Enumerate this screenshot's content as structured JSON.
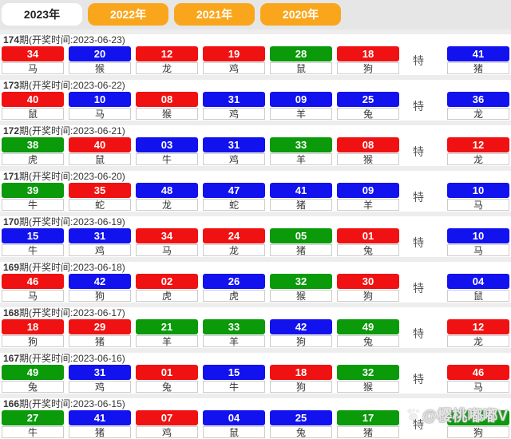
{
  "tabs": {
    "items": [
      {
        "label": "2023年",
        "active": true
      },
      {
        "label": "2022年",
        "active": false
      },
      {
        "label": "2021年",
        "active": false
      },
      {
        "label": "2020年",
        "active": false
      }
    ]
  },
  "labels": {
    "special": "特",
    "period_suffix": "期",
    "time_open": "(开奖时间:",
    "time_close": ")"
  },
  "colors": {
    "red": "#f01212",
    "blue": "#1212ee",
    "green": "#0a9a0a",
    "tab_orange": "#faa61c"
  },
  "watermark": {
    "text": "@樱桃嘟嘟V"
  },
  "rows": [
    {
      "period": "174",
      "date": "2023-06-23",
      "balls": [
        {
          "n": "34",
          "c": "red",
          "z": "马"
        },
        {
          "n": "20",
          "c": "blue",
          "z": "猴"
        },
        {
          "n": "12",
          "c": "red",
          "z": "龙"
        },
        {
          "n": "19",
          "c": "red",
          "z": "鸡"
        },
        {
          "n": "28",
          "c": "green",
          "z": "鼠"
        },
        {
          "n": "18",
          "c": "red",
          "z": "狗"
        }
      ],
      "special": {
        "n": "41",
        "c": "blue",
        "z": "猪"
      }
    },
    {
      "period": "173",
      "date": "2023-06-22",
      "balls": [
        {
          "n": "40",
          "c": "red",
          "z": "鼠"
        },
        {
          "n": "10",
          "c": "blue",
          "z": "马"
        },
        {
          "n": "08",
          "c": "red",
          "z": "猴"
        },
        {
          "n": "31",
          "c": "blue",
          "z": "鸡"
        },
        {
          "n": "09",
          "c": "blue",
          "z": "羊"
        },
        {
          "n": "25",
          "c": "blue",
          "z": "兔"
        }
      ],
      "special": {
        "n": "36",
        "c": "blue",
        "z": "龙"
      }
    },
    {
      "period": "172",
      "date": "2023-06-21",
      "balls": [
        {
          "n": "38",
          "c": "green",
          "z": "虎"
        },
        {
          "n": "40",
          "c": "red",
          "z": "鼠"
        },
        {
          "n": "03",
          "c": "blue",
          "z": "牛"
        },
        {
          "n": "31",
          "c": "blue",
          "z": "鸡"
        },
        {
          "n": "33",
          "c": "green",
          "z": "羊"
        },
        {
          "n": "08",
          "c": "red",
          "z": "猴"
        }
      ],
      "special": {
        "n": "12",
        "c": "red",
        "z": "龙"
      }
    },
    {
      "period": "171",
      "date": "2023-06-20",
      "balls": [
        {
          "n": "39",
          "c": "green",
          "z": "牛"
        },
        {
          "n": "35",
          "c": "red",
          "z": "蛇"
        },
        {
          "n": "48",
          "c": "blue",
          "z": "龙"
        },
        {
          "n": "47",
          "c": "blue",
          "z": "蛇"
        },
        {
          "n": "41",
          "c": "blue",
          "z": "猪"
        },
        {
          "n": "09",
          "c": "blue",
          "z": "羊"
        }
      ],
      "special": {
        "n": "10",
        "c": "blue",
        "z": "马"
      }
    },
    {
      "period": "170",
      "date": "2023-06-19",
      "balls": [
        {
          "n": "15",
          "c": "blue",
          "z": "牛"
        },
        {
          "n": "31",
          "c": "blue",
          "z": "鸡"
        },
        {
          "n": "34",
          "c": "red",
          "z": "马"
        },
        {
          "n": "24",
          "c": "red",
          "z": "龙"
        },
        {
          "n": "05",
          "c": "green",
          "z": "猪"
        },
        {
          "n": "01",
          "c": "red",
          "z": "兔"
        }
      ],
      "special": {
        "n": "10",
        "c": "blue",
        "z": "马"
      }
    },
    {
      "period": "169",
      "date": "2023-06-18",
      "balls": [
        {
          "n": "46",
          "c": "red",
          "z": "马"
        },
        {
          "n": "42",
          "c": "blue",
          "z": "狗"
        },
        {
          "n": "02",
          "c": "red",
          "z": "虎"
        },
        {
          "n": "26",
          "c": "blue",
          "z": "虎"
        },
        {
          "n": "32",
          "c": "green",
          "z": "猴"
        },
        {
          "n": "30",
          "c": "red",
          "z": "狗"
        }
      ],
      "special": {
        "n": "04",
        "c": "blue",
        "z": "鼠"
      }
    },
    {
      "period": "168",
      "date": "2023-06-17",
      "balls": [
        {
          "n": "18",
          "c": "red",
          "z": "狗"
        },
        {
          "n": "29",
          "c": "red",
          "z": "猪"
        },
        {
          "n": "21",
          "c": "green",
          "z": "羊"
        },
        {
          "n": "33",
          "c": "green",
          "z": "羊"
        },
        {
          "n": "42",
          "c": "blue",
          "z": "狗"
        },
        {
          "n": "49",
          "c": "green",
          "z": "兔"
        }
      ],
      "special": {
        "n": "12",
        "c": "red",
        "z": "龙"
      }
    },
    {
      "period": "167",
      "date": "2023-06-16",
      "balls": [
        {
          "n": "49",
          "c": "green",
          "z": "兔"
        },
        {
          "n": "31",
          "c": "blue",
          "z": "鸡"
        },
        {
          "n": "01",
          "c": "red",
          "z": "兔"
        },
        {
          "n": "15",
          "c": "blue",
          "z": "牛"
        },
        {
          "n": "18",
          "c": "red",
          "z": "狗"
        },
        {
          "n": "32",
          "c": "green",
          "z": "猴"
        }
      ],
      "special": {
        "n": "46",
        "c": "red",
        "z": "马"
      }
    },
    {
      "period": "166",
      "date": "2023-06-15",
      "balls": [
        {
          "n": "27",
          "c": "green",
          "z": "牛"
        },
        {
          "n": "41",
          "c": "blue",
          "z": "猪"
        },
        {
          "n": "07",
          "c": "red",
          "z": "鸡"
        },
        {
          "n": "04",
          "c": "blue",
          "z": "鼠"
        },
        {
          "n": "25",
          "c": "blue",
          "z": "兔"
        },
        {
          "n": "17",
          "c": "green",
          "z": "猪"
        }
      ],
      "special": {
        "n": "06",
        "c": "green",
        "z": "狗"
      }
    }
  ]
}
